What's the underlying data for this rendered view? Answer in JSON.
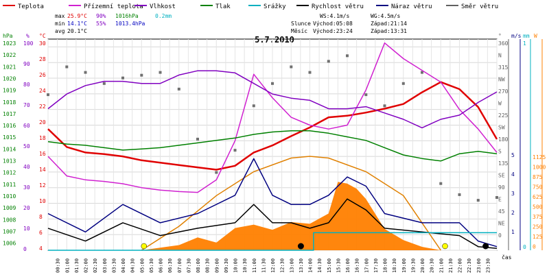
{
  "title": "5.7.2010",
  "legend": [
    {
      "label": "Teplota",
      "color": "#e00000"
    },
    {
      "label": "Přízemní teplota",
      "color": "#d020d0"
    },
    {
      "label": "Vlhkost",
      "color": "#8000c0"
    },
    {
      "label": "Tlak",
      "color": "#008000"
    },
    {
      "label": "Srážky",
      "color": "#00b0c0"
    },
    {
      "label": "Rychlost větru",
      "color": "#000000"
    },
    {
      "label": "Náraz větru",
      "color": "#000080"
    },
    {
      "label": "Směr větru",
      "color": "#606060"
    }
  ],
  "stats": {
    "max_label": "max",
    "max_temp": "25.9°C",
    "max_hum": "90%",
    "max_press": "1016hPa",
    "rain": "0.2mm",
    "min_label": "min",
    "min_temp": "14.1°C",
    "min_hum": "55%",
    "min_press": "1013.4hPa",
    "avg_label": "avg",
    "avg_temp": "20.1°C"
  },
  "wind_info": {
    "ws": "WS:4.1m/s",
    "wg": "WG:4.5m/s",
    "sun_label": "Slunce",
    "sun_rise": "Východ:05:08",
    "sun_set": "Západ:21:14",
    "moon_label": "Měsíc",
    "moon_rise": "Východ:23:24",
    "moon_set": "Západ:13:31"
  },
  "axis_units": {
    "hpa": "hPa",
    "pct": "%",
    "degc": "°C",
    "deg": "°",
    "ms": "m/s",
    "mm": "mm",
    "w": "W",
    "time": "čas"
  },
  "axis_ticks": {
    "hpa": [
      "1023",
      "1022",
      "1021",
      "1020",
      "1019",
      "1018",
      "1017",
      "1016",
      "1015",
      "1014",
      "1013",
      "1012",
      "1011",
      "1010",
      "1009",
      "1008",
      "1007",
      "1006"
    ],
    "pct": [
      "100",
      "90",
      "80",
      "70",
      "60",
      "50",
      "40",
      "30",
      "20",
      "10",
      "0"
    ],
    "degc": [
      "30",
      "28",
      "26",
      "24",
      "22",
      "20",
      "18",
      "16",
      "14",
      "12",
      "10",
      "8",
      "6",
      "4"
    ],
    "dir": [
      "360",
      "N",
      "315",
      "NW",
      "270",
      "W",
      "225",
      "SW",
      "180",
      "S",
      "135",
      "SE",
      "90",
      "E",
      "45",
      "NE",
      "0"
    ],
    "ms": [
      "5",
      "4",
      "3",
      "2",
      "1"
    ],
    "mm": [
      "1",
      "0"
    ],
    "w": [
      "1125",
      "1000",
      "875",
      "750",
      "625",
      "500",
      "375",
      "250",
      "125",
      "0"
    ]
  },
  "chart_data": {
    "type": "line",
    "title": "5.7.2010",
    "x_labels": [
      "00:30",
      "01:00",
      "01:30",
      "02:00",
      "02:30",
      "03:00",
      "03:30",
      "04:00",
      "04:30",
      "05:00",
      "05:30",
      "06:00",
      "06:30",
      "07:00",
      "07:30",
      "08:00",
      "08:30",
      "09:00",
      "09:30",
      "10:00",
      "10:30",
      "11:00",
      "11:30",
      "12:00",
      "12:30",
      "13:00",
      "13:30",
      "14:00",
      "14:30",
      "15:00",
      "15:30",
      "16:00",
      "16:30",
      "17:00",
      "17:30",
      "18:00",
      "18:30",
      "19:00",
      "19:30",
      "20:00",
      "20:30",
      "21:00",
      "21:30",
      "22:00",
      "22:30",
      "23:00",
      "23:30"
    ],
    "temp_range": [
      4,
      31
    ],
    "series": [
      {
        "name": "Teplota",
        "unit": "°C",
        "color": "#e00000",
        "x": [
          0,
          1,
          2,
          3,
          4,
          5,
          6,
          7,
          8,
          9,
          10,
          11,
          12,
          13,
          14,
          15,
          16,
          17,
          18,
          19,
          20,
          21,
          22,
          23,
          24
        ],
        "values": [
          19.5,
          17.2,
          16.5,
          16.3,
          16.0,
          15.5,
          15.2,
          14.9,
          14.6,
          14.3,
          14.8,
          16.5,
          17.4,
          18.6,
          19.7,
          21.0,
          21.2,
          21.6,
          22.1,
          22.7,
          24.2,
          25.5,
          24.6,
          22.3,
          18.2
        ]
      },
      {
        "name": "Přízemní teplota",
        "unit": "°C",
        "color": "#d020d0",
        "x": [
          0,
          1,
          2,
          3,
          4,
          5,
          6,
          7,
          8,
          9,
          10,
          11,
          12,
          13,
          14,
          15,
          16,
          17,
          18,
          19,
          20,
          21,
          22,
          23,
          24
        ],
        "values": [
          16.0,
          13.5,
          13.0,
          12.8,
          12.5,
          12.0,
          11.7,
          11.5,
          11.4,
          13.0,
          18.0,
          26.5,
          23.5,
          21.0,
          20.0,
          19.5,
          20.0,
          24.5,
          30.5,
          28.5,
          27.0,
          25.5,
          22.0,
          19.5,
          16.5
        ]
      },
      {
        "name": "Vlhkost",
        "unit": "%",
        "color": "#8000c0",
        "x": [
          0,
          1,
          2,
          3,
          4,
          5,
          6,
          7,
          8,
          9,
          10,
          11,
          12,
          13,
          14,
          15,
          16,
          17,
          18,
          19,
          20,
          21,
          22,
          23,
          24
        ],
        "values": [
          67,
          74,
          78,
          80,
          80,
          79,
          79,
          83,
          85,
          85,
          84,
          79,
          74,
          72,
          71,
          67,
          67,
          68,
          65,
          62,
          58,
          62,
          64,
          70,
          75
        ]
      },
      {
        "name": "Tlak",
        "unit": "hPa",
        "color": "#008000",
        "x": [
          0,
          1,
          2,
          3,
          4,
          5,
          6,
          7,
          8,
          9,
          10,
          11,
          12,
          13,
          14,
          15,
          16,
          17,
          18,
          19,
          20,
          21,
          22,
          23,
          24
        ],
        "values": [
          1015.0,
          1014.8,
          1014.7,
          1014.5,
          1014.3,
          1014.4,
          1014.5,
          1014.7,
          1014.9,
          1015.1,
          1015.3,
          1015.6,
          1015.8,
          1015.9,
          1015.9,
          1015.7,
          1015.4,
          1015.1,
          1014.5,
          1013.9,
          1013.6,
          1013.4,
          1014.0,
          1014.2,
          1014.0
        ]
      },
      {
        "name": "Rychlost větru",
        "unit": "m/s",
        "color": "#000000",
        "x": [
          0,
          2,
          4,
          6,
          8,
          10,
          11,
          12,
          13,
          14,
          15,
          16,
          17,
          18,
          20,
          22,
          23,
          24
        ],
        "values": [
          1.2,
          0.5,
          1.5,
          0.8,
          1.2,
          1.5,
          2.5,
          1.5,
          1.5,
          1.2,
          1.5,
          2.8,
          2.2,
          1.2,
          1.0,
          0.8,
          0.2,
          0.1
        ]
      },
      {
        "name": "Náraz větru",
        "unit": "m/s",
        "color": "#000080",
        "x": [
          0,
          2,
          4,
          6,
          8,
          10,
          11,
          12,
          13,
          14,
          15,
          16,
          17,
          18,
          20,
          22,
          23,
          24
        ],
        "values": [
          2.0,
          1.0,
          2.5,
          1.5,
          2.0,
          3.0,
          5.0,
          3.0,
          2.5,
          2.5,
          3.0,
          4.0,
          3.5,
          2.0,
          1.5,
          1.5,
          0.5,
          0.2
        ]
      },
      {
        "name": "Srážky",
        "unit": "mm",
        "color": "#00b0c0",
        "x": [
          0,
          14.2,
          14.2,
          24
        ],
        "values": [
          0,
          0,
          0.2,
          0.2
        ]
      }
    ],
    "solar_radiation": {
      "unit": "W",
      "color": "#ff8000",
      "x": [
        5,
        7,
        8,
        9,
        10,
        11,
        12,
        13,
        14,
        15,
        15.5,
        16,
        16.5,
        17,
        18,
        19,
        20,
        21
      ],
      "values": [
        0,
        60,
        150,
        90,
        260,
        300,
        240,
        330,
        310,
        430,
        800,
        780,
        720,
        600,
        250,
        120,
        40,
        0
      ]
    },
    "solar_max": {
      "unit": "W",
      "x": [
        5,
        7,
        9,
        11,
        13,
        14,
        15,
        17,
        19,
        21
      ],
      "values": [
        0,
        280,
        640,
        920,
        1080,
        1100,
        1080,
        920,
        640,
        0
      ]
    },
    "wind_direction": {
      "unit": "°",
      "x": [
        0,
        1,
        2,
        3,
        4,
        5,
        6,
        7,
        8,
        9,
        10,
        11,
        12,
        13,
        14,
        15,
        16,
        17,
        18,
        19,
        20,
        21,
        22,
        23,
        24
      ],
      "values": [
        280,
        330,
        320,
        300,
        310,
        315,
        320,
        290,
        200,
        140,
        180,
        260,
        300,
        330,
        320,
        340,
        350,
        280,
        260,
        300,
        320,
        120,
        100,
        90,
        95
      ]
    }
  }
}
